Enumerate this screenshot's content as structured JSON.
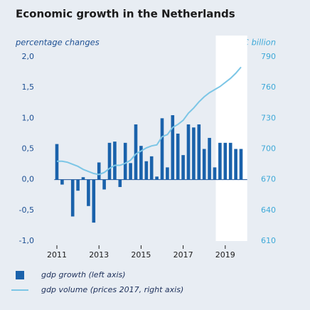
{
  "chart_data": {
    "type": "bar",
    "title": "Economic growth in the Netherlands",
    "ylabel": "percentage changes",
    "y2label": "€ billion",
    "categories": [
      "2011",
      null,
      null,
      null,
      null,
      null,
      null,
      null,
      "2013",
      null,
      null,
      null,
      null,
      null,
      null,
      null,
      "2015",
      null,
      null,
      null,
      null,
      null,
      null,
      null,
      "2017",
      null,
      null,
      null,
      null,
      null,
      null,
      null,
      "2019",
      null,
      null,
      null
    ],
    "series": [
      {
        "name": "gdp growth (left axis)",
        "type": "bar",
        "color": "#1a62ab",
        "values": [
          0.58,
          -0.08,
          0,
          -0.6,
          -0.18,
          0.04,
          -0.43,
          -0.7,
          0.28,
          -0.16,
          0.6,
          0.62,
          -0.12,
          0.6,
          0.27,
          0.9,
          0.55,
          0.3,
          0.38,
          0.05,
          1.0,
          0.2,
          1.05,
          0.75,
          0.4,
          0.9,
          0.85,
          0.9,
          0.5,
          0.68,
          0.2,
          0.6,
          0.6,
          0.6,
          0.5,
          0.5
        ]
      },
      {
        "name": "gdp volume (prices 2017, right axis)",
        "type": "line",
        "axis": "y2",
        "color": "#7cc6e6",
        "values": [
          688,
          688,
          687,
          685,
          683,
          680,
          678,
          676,
          675,
          677,
          681,
          684,
          684,
          686,
          689,
          695,
          698,
          701,
          703,
          704,
          712,
          714,
          721,
          724,
          728,
          735,
          740,
          746,
          751,
          755,
          758,
          761,
          765,
          769,
          774,
          780
        ]
      }
    ],
    "ylim": [
      -1.0,
      2.0
    ],
    "yticks": [
      {
        "value": 2.0,
        "label": "2,0"
      },
      {
        "value": 1.5,
        "label": "1,5"
      },
      {
        "value": 1.0,
        "label": "1,0"
      },
      {
        "value": 0.5,
        "label": "0,5"
      },
      {
        "value": 0.0,
        "label": "0,0"
      },
      {
        "value": -0.5,
        "label": "-0,5"
      },
      {
        "value": -1.0,
        "label": "-1,0"
      }
    ],
    "y2lim": [
      610,
      790
    ],
    "y2ticks": [
      790,
      760,
      730,
      700,
      670,
      640,
      610
    ],
    "forecast_start": 31,
    "grid": false
  }
}
